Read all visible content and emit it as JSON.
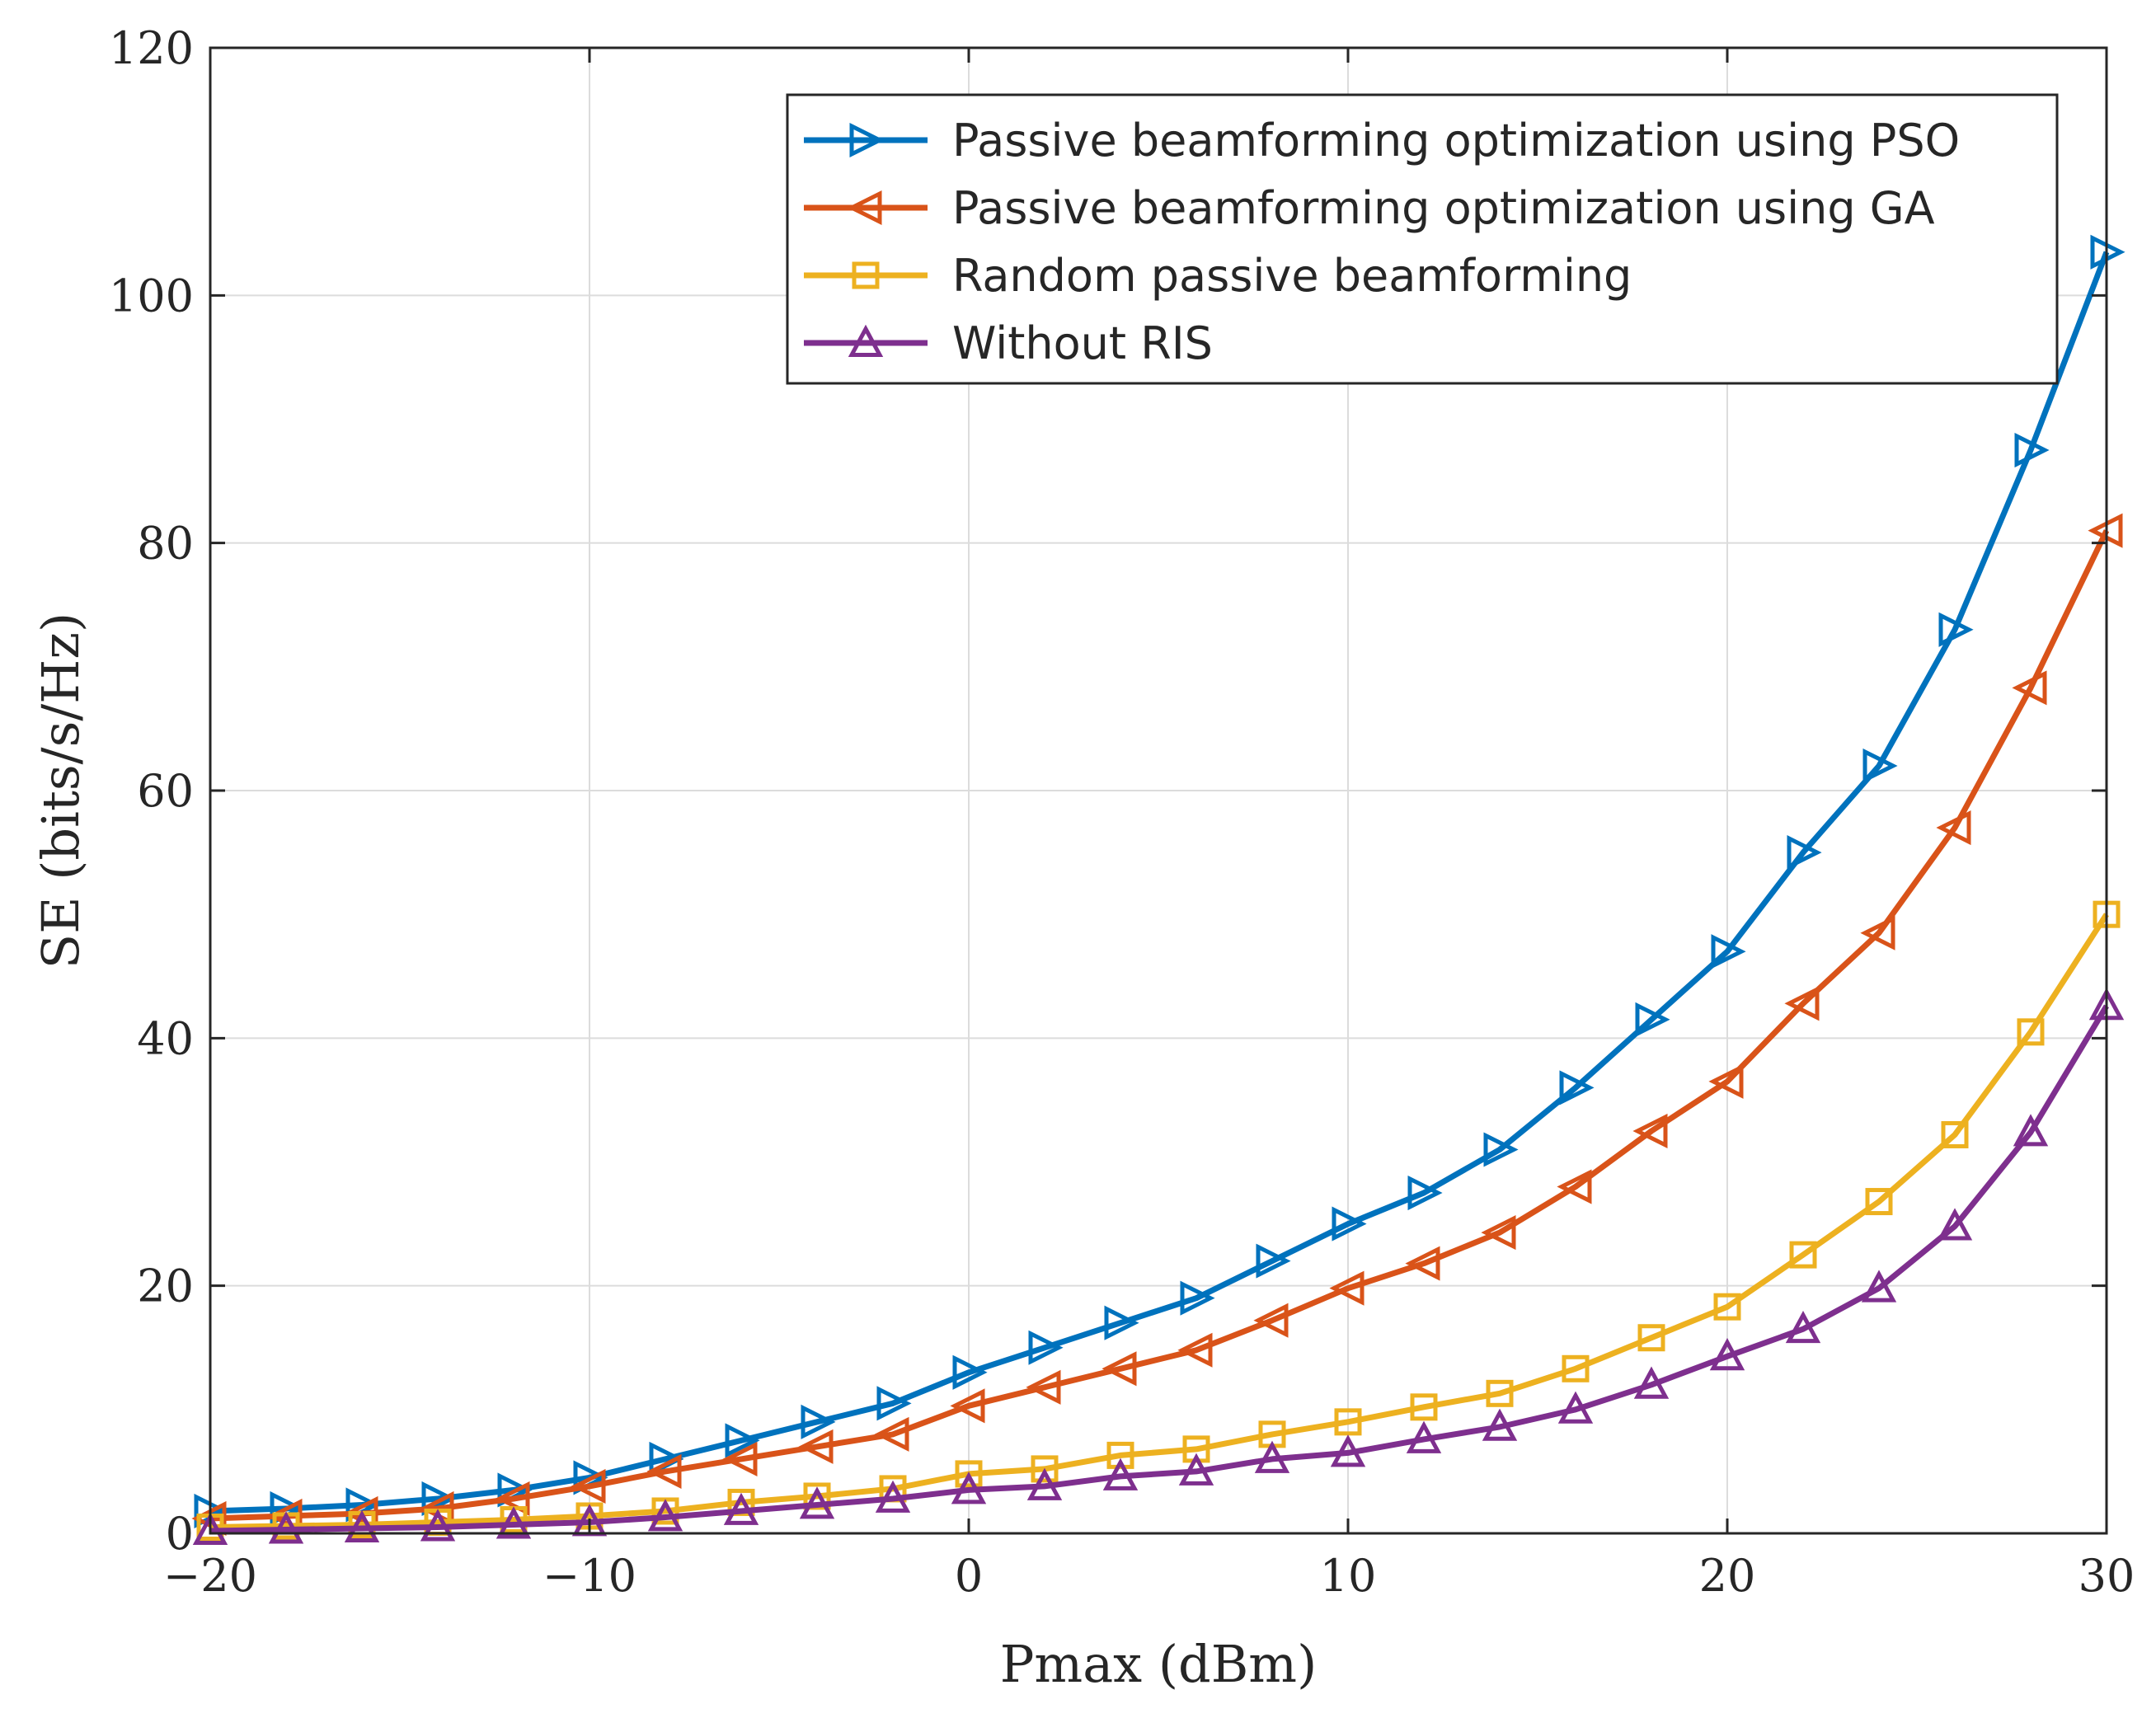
{
  "chart_data": {
    "type": "line",
    "xlabel": "Pmax (dBm)",
    "ylabel": "SE (bits/s/Hz)",
    "xlim": [
      -20,
      30
    ],
    "ylim": [
      0,
      120
    ],
    "x_ticks": [
      -20,
      -10,
      0,
      10,
      20,
      30
    ],
    "x_tick_labels": [
      "−20",
      "−10",
      "0",
      "10",
      "20",
      "30"
    ],
    "y_ticks": [
      0,
      20,
      40,
      60,
      80,
      100,
      120
    ],
    "y_tick_labels": [
      "0",
      "20",
      "40",
      "60",
      "80",
      "100",
      "120"
    ],
    "grid": true,
    "legend_position": "top-right",
    "x": [
      -20,
      -18,
      -16,
      -14,
      -12,
      -10,
      -8,
      -6,
      -4,
      -2,
      0,
      2,
      4,
      6,
      8,
      10,
      12,
      14,
      16,
      18,
      20,
      22,
      24,
      26,
      28,
      30
    ],
    "series": [
      {
        "name": "Passive beamforming optimization using PSO",
        "color": "#0072BD",
        "marker": "triangle-right",
        "values": [
          1.8,
          2.0,
          2.3,
          2.8,
          3.5,
          4.5,
          6.0,
          7.5,
          9.0,
          10.5,
          13.0,
          15.0,
          17.0,
          19.0,
          22.0,
          25.0,
          27.5,
          31.0,
          36.0,
          41.5,
          47.0,
          55.0,
          62.0,
          73.0,
          87.5,
          103.5
        ]
      },
      {
        "name": "Passive beamforming optimization using GA",
        "color": "#D95319",
        "marker": "triangle-left",
        "values": [
          1.2,
          1.4,
          1.6,
          2.0,
          2.8,
          3.8,
          5.0,
          6.0,
          7.0,
          8.0,
          10.3,
          11.8,
          13.3,
          14.8,
          17.2,
          19.8,
          21.8,
          24.3,
          28.0,
          32.5,
          36.5,
          42.8,
          48.5,
          57.0,
          68.3,
          81.0
        ]
      },
      {
        "name": "Random passive beamforming",
        "color": "#EDB120",
        "marker": "square",
        "values": [
          0.5,
          0.6,
          0.7,
          0.9,
          1.1,
          1.4,
          1.8,
          2.5,
          3.0,
          3.6,
          4.8,
          5.2,
          6.3,
          6.8,
          8.0,
          9.0,
          10.2,
          11.3,
          13.3,
          15.8,
          18.3,
          22.5,
          26.8,
          32.2,
          40.5,
          50.0
        ]
      },
      {
        "name": "Without RIS",
        "color": "#7E2F8E",
        "marker": "triangle-up",
        "values": [
          0.2,
          0.3,
          0.4,
          0.5,
          0.7,
          0.9,
          1.3,
          1.8,
          2.3,
          2.8,
          3.5,
          3.8,
          4.6,
          5.0,
          6.0,
          6.5,
          7.6,
          8.6,
          10.0,
          12.0,
          14.3,
          16.5,
          19.8,
          24.8,
          32.4,
          42.6
        ]
      }
    ]
  }
}
